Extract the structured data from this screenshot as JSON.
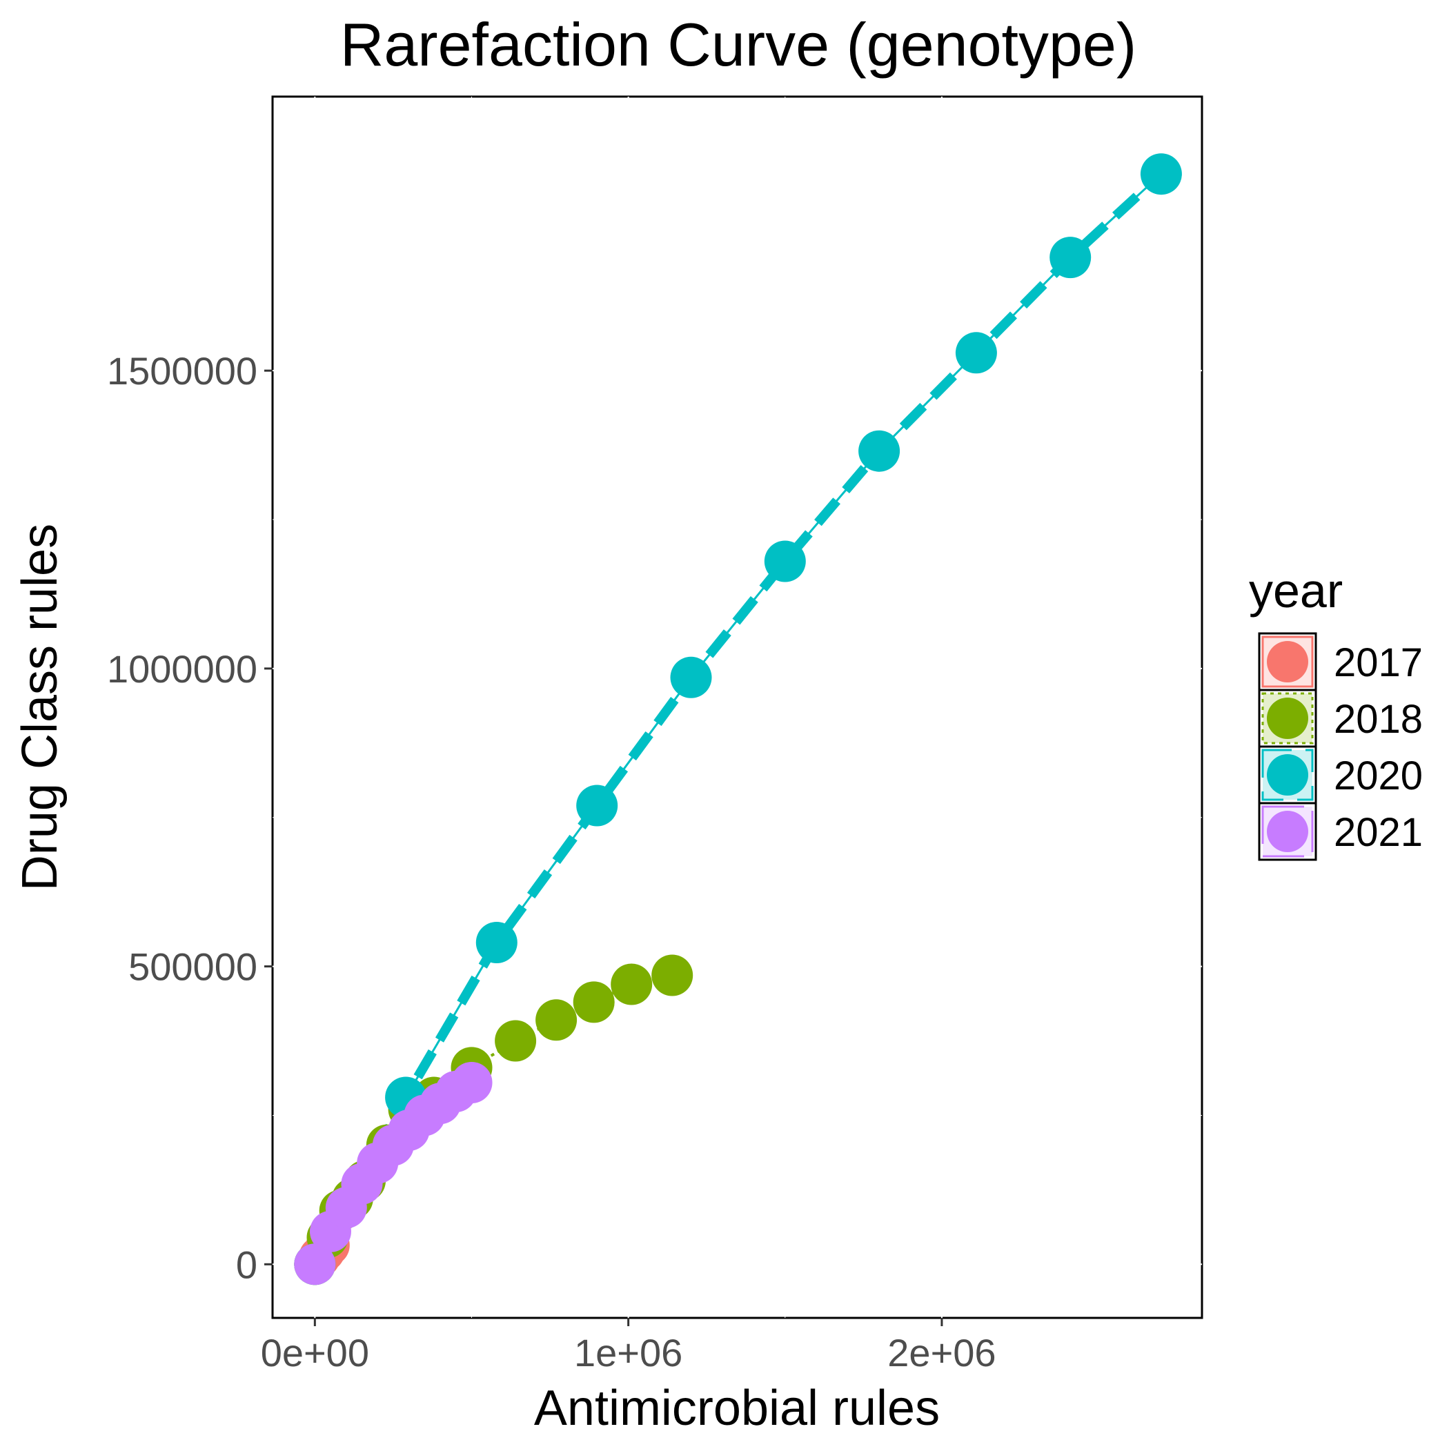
{
  "chart_data": {
    "type": "line",
    "title": "Rarefaction Curve (genotype)",
    "xlabel": "Antimicrobial rules",
    "ylabel": "Drug Class rules",
    "xlim": [
      -135000,
      2830000
    ],
    "ylim": [
      -90000,
      1960000
    ],
    "x_ticks": [
      {
        "value": 0,
        "label": "0e+00"
      },
      {
        "value": 1000000,
        "label": "1e+06"
      },
      {
        "value": 2000000,
        "label": "2e+06"
      }
    ],
    "y_ticks": [
      {
        "value": 0,
        "label": "0"
      },
      {
        "value": 500000,
        "label": "500000"
      },
      {
        "value": 1000000,
        "label": "1000000"
      },
      {
        "value": 1500000,
        "label": "1500000"
      }
    ],
    "grid": false,
    "legend": {
      "title": "year",
      "position": "right"
    },
    "series": [
      {
        "name": "2017",
        "color": "#F8766D",
        "line_style": "solid",
        "points": [
          [
            0,
            0
          ],
          [
            15000,
            12000
          ],
          [
            30000,
            22000
          ],
          [
            45000,
            32000
          ]
        ]
      },
      {
        "name": "2018",
        "color": "#7CAE00",
        "line_style": "dotted",
        "points": [
          [
            0,
            0
          ],
          [
            40000,
            45000
          ],
          [
            80000,
            90000
          ],
          [
            120000,
            110000
          ],
          [
            160000,
            140000
          ],
          [
            230000,
            200000
          ],
          [
            300000,
            260000
          ],
          [
            380000,
            280000
          ],
          [
            500000,
            330000
          ],
          [
            640000,
            375000
          ],
          [
            770000,
            410000
          ],
          [
            890000,
            440000
          ],
          [
            1010000,
            470000
          ],
          [
            1140000,
            485000
          ]
        ]
      },
      {
        "name": "2020",
        "color": "#00BFC4",
        "line_style": "dashed",
        "points": [
          [
            0,
            0
          ],
          [
            290000,
            280000
          ],
          [
            580000,
            540000
          ],
          [
            900000,
            770000
          ],
          [
            1200000,
            985000
          ],
          [
            1500000,
            1180000
          ],
          [
            1800000,
            1365000
          ],
          [
            2110000,
            1530000
          ],
          [
            2410000,
            1690000
          ],
          [
            2700000,
            1830000
          ]
        ]
      },
      {
        "name": "2021",
        "color": "#C77CFF",
        "line_style": "longdash",
        "points": [
          [
            0,
            0
          ],
          [
            50000,
            55000
          ],
          [
            100000,
            95000
          ],
          [
            150000,
            135000
          ],
          [
            200000,
            170000
          ],
          [
            250000,
            200000
          ],
          [
            300000,
            225000
          ],
          [
            350000,
            250000
          ],
          [
            400000,
            270000
          ],
          [
            450000,
            290000
          ],
          [
            500000,
            305000
          ]
        ]
      }
    ]
  }
}
